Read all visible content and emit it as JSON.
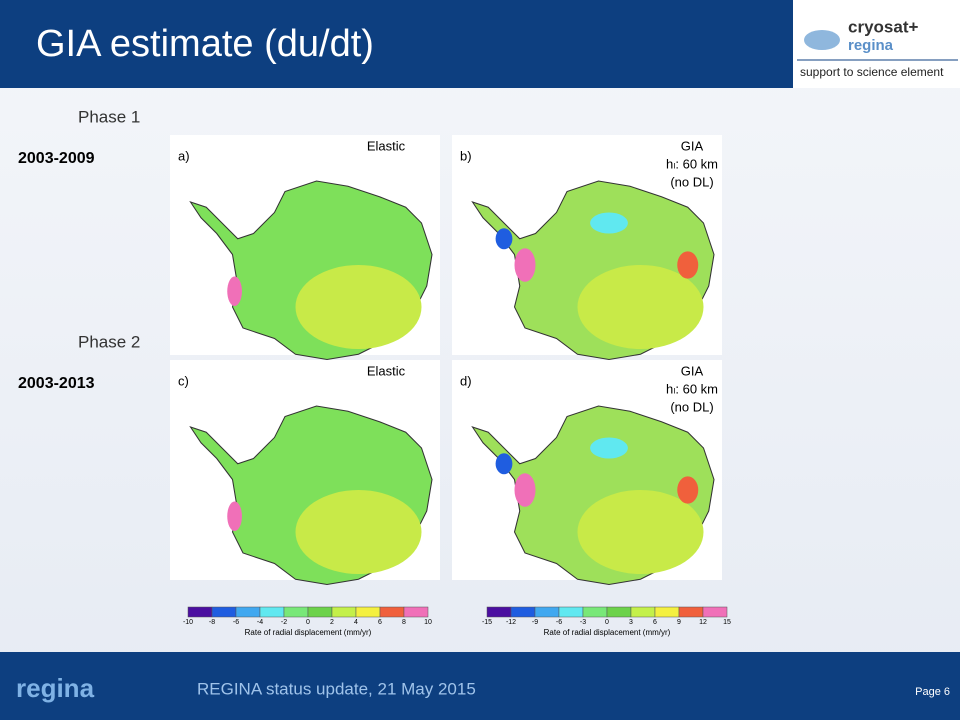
{
  "header": {
    "title": "GIA estimate (du/dt)",
    "logo": {
      "name": "cryosat+",
      "sub": "regina",
      "tagline": "support to science element"
    }
  },
  "phases": [
    {
      "label": "Phase 1",
      "period": "2003-2009",
      "panels": [
        {
          "letter": "a)",
          "lines": [
            "Elastic"
          ]
        },
        {
          "letter": "b)",
          "lines": [
            "GIA",
            "hₗ: 60 km",
            "(no DL)"
          ]
        }
      ]
    },
    {
      "label": "Phase 2",
      "period": "2003-2013",
      "panels": [
        {
          "letter": "c)",
          "lines": [
            "Elastic"
          ]
        },
        {
          "letter": "d)",
          "lines": [
            "GIA",
            "hₗ: 60 km",
            "(no DL)"
          ]
        }
      ]
    }
  ],
  "colorbars": [
    {
      "ticks": [
        -10,
        -8,
        -6,
        -4,
        -2,
        0,
        2,
        4,
        6,
        8,
        10
      ],
      "label": "Rate of radial displacement (mm/yr)"
    },
    {
      "ticks": [
        -15,
        -12,
        -9,
        -6,
        -3,
        0,
        3,
        6,
        9,
        12,
        15
      ],
      "label": "Rate of radial displacement (mm/yr)"
    }
  ],
  "footer": {
    "brand": "regina",
    "text": "REGINA status update,  21 May 2015",
    "page": "Page 6"
  }
}
